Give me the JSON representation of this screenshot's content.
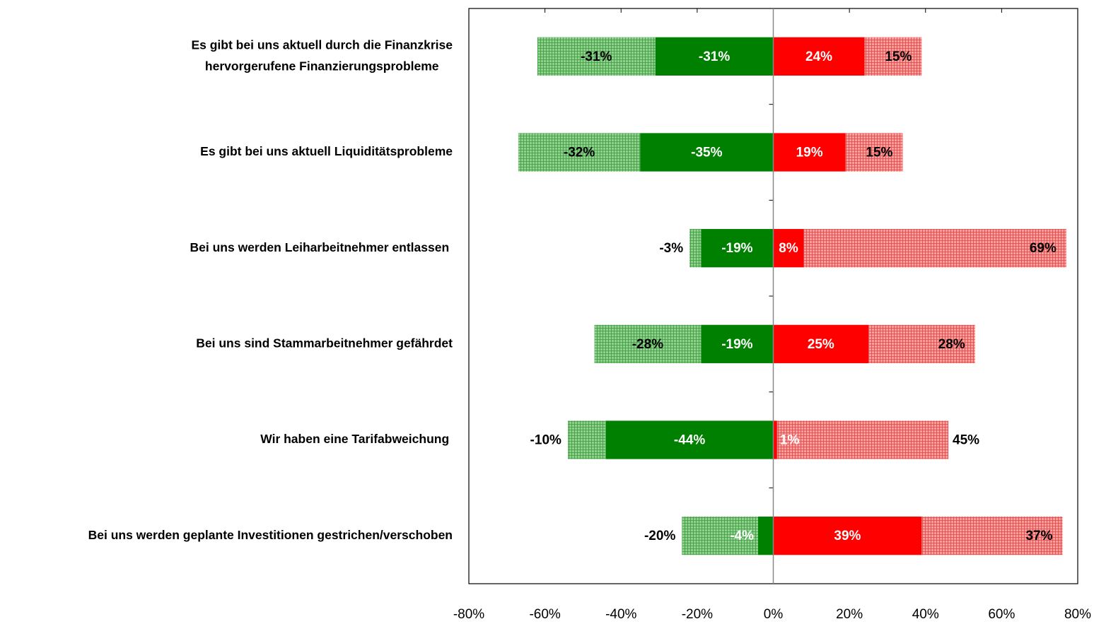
{
  "chart_data": {
    "type": "diverging-stacked-bar",
    "categories": [
      [
        "Es gibt bei uns aktuell durch die Finanzkrise",
        "hervorgerufene Finanzierungsprobleme"
      ],
      [
        "Es gibt bei uns aktuell Liquiditätsprobleme"
      ],
      [
        "Bei uns werden Leiharbeitnehmer entlassen "
      ],
      [
        "Bei uns sind Stammarbeitnehmer gefährdet"
      ],
      [
        "Wir haben eine Tarifabweichung "
      ],
      [
        "Bei uns werden geplante Investitionen gestrichen/verschoben"
      ]
    ],
    "series": [
      {
        "color": "#8fd08f",
        "hatch": "#3a9a3a",
        "label_color": "#000000",
        "values": [
          -31,
          -32,
          -3,
          -28,
          -10,
          -20
        ],
        "value_labels": [
          "-31%",
          "-32%",
          "-3%",
          "-28%",
          "-10%",
          "-20%"
        ]
      },
      {
        "color": "#008000",
        "label_color": "#ffffff",
        "values": [
          -31,
          -35,
          -19,
          -19,
          -44,
          -4
        ],
        "value_labels": [
          "-31%",
          "-35%",
          "-19%",
          "-19%",
          "-44%",
          "-4%"
        ]
      },
      {
        "color": "#ff0000",
        "label_color": "#ffffff",
        "values": [
          24,
          19,
          8,
          25,
          1,
          39
        ],
        "value_labels": [
          "24%",
          "19%",
          "8%",
          "25%",
          "1%",
          "39%"
        ]
      },
      {
        "color": "#f7a0a0",
        "hatch": "#e84040",
        "label_color": "#000000",
        "values": [
          15,
          15,
          69,
          28,
          45,
          37
        ],
        "value_labels": [
          "15%",
          "15%",
          "69%",
          "28%",
          "45%",
          "37%"
        ]
      }
    ],
    "xlim": [
      -80,
      80
    ],
    "xticks": [
      {
        "value": -80,
        "label": "-80%"
      },
      {
        "value": -60,
        "label": "-60%"
      },
      {
        "value": -40,
        "label": "-40%"
      },
      {
        "value": -20,
        "label": "-20%"
      },
      {
        "value": 0,
        "label": "0%"
      },
      {
        "value": 20,
        "label": "20%"
      },
      {
        "value": 40,
        "label": "40%"
      },
      {
        "value": 60,
        "label": "60%"
      },
      {
        "value": 80,
        "label": "80%"
      }
    ]
  }
}
